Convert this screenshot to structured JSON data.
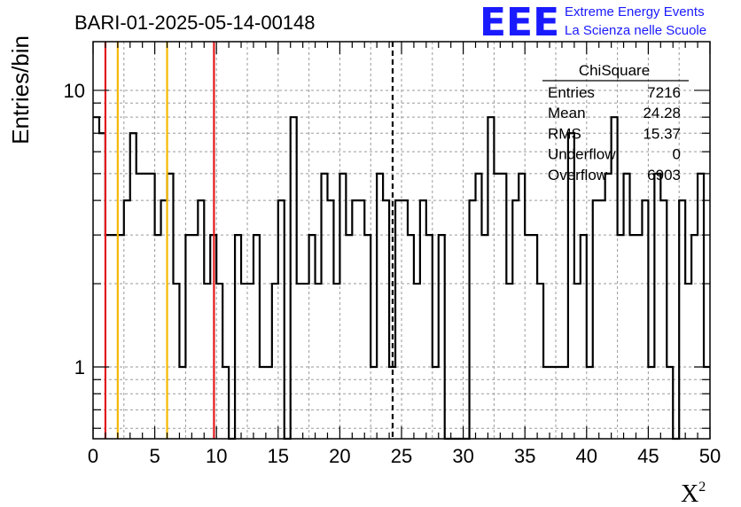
{
  "chart_data": {
    "type": "histogram-step",
    "title": "BARI-01-2025-05-14-00148",
    "xlabel": "X",
    "xlabel_sup": "2",
    "ylabel": "Entries/bin",
    "log_y": true,
    "xlim": [
      0,
      50
    ],
    "ylim": [
      0.55,
      15
    ],
    "grid": true,
    "bin_width": 0.5,
    "x_ticks": [
      0,
      5,
      10,
      15,
      20,
      25,
      30,
      35,
      40,
      45,
      50
    ],
    "x_tick_labels": [
      "0",
      "5",
      "10",
      "15",
      "20",
      "25",
      "30",
      "35",
      "40",
      "45",
      "50"
    ],
    "y_tick_labels": [
      {
        "value": 1,
        "label": "1"
      },
      {
        "value": 10,
        "label": "10"
      }
    ],
    "values": [
      8,
      7,
      3,
      3,
      3,
      4,
      7,
      5,
      5,
      5,
      3,
      4,
      5,
      2,
      1,
      3,
      3,
      4,
      2,
      3,
      2,
      1,
      0,
      3,
      2,
      2,
      3,
      1,
      1,
      2,
      4,
      0,
      8,
      2,
      2,
      3,
      2,
      5,
      4,
      2,
      5,
      3,
      4,
      4,
      3,
      1,
      5,
      4,
      1,
      4,
      4,
      3,
      2,
      4,
      3,
      1,
      3,
      0,
      0,
      0,
      0,
      4,
      5,
      3,
      8,
      5,
      5,
      2,
      4,
      5,
      3,
      3,
      2,
      1,
      1,
      1,
      1,
      7,
      2,
      3,
      1,
      4,
      4,
      5,
      8,
      3,
      5,
      3,
      3,
      4,
      1,
      5,
      4,
      1,
      0,
      4,
      2,
      3,
      5,
      1
    ],
    "vertical_lines": [
      {
        "x": 1.0,
        "color": "#e31a1c",
        "style": "solid"
      },
      {
        "x": 2.0,
        "color": "#f5b800",
        "style": "solid"
      },
      {
        "x": 6.0,
        "color": "#f5b800",
        "style": "solid"
      },
      {
        "x": 9.8,
        "color": "#e31a1c",
        "style": "solid"
      },
      {
        "x": 24.28,
        "color": "#000000",
        "style": "dashed"
      }
    ]
  },
  "stats_box": {
    "title": "ChiSquare",
    "rows": [
      {
        "label": "Entries",
        "value": "7216"
      },
      {
        "label": "Mean",
        "value": "24.28"
      },
      {
        "label": "RMS",
        "value": "15.37"
      },
      {
        "label": "Underflow",
        "value": "0"
      },
      {
        "label": "Overflow",
        "value": "6903"
      }
    ]
  },
  "logo": {
    "mark": "EEE",
    "line1": "Extreme Energy Events",
    "line2": "La Scienza nelle Scuole",
    "color": "#1a1aff"
  }
}
